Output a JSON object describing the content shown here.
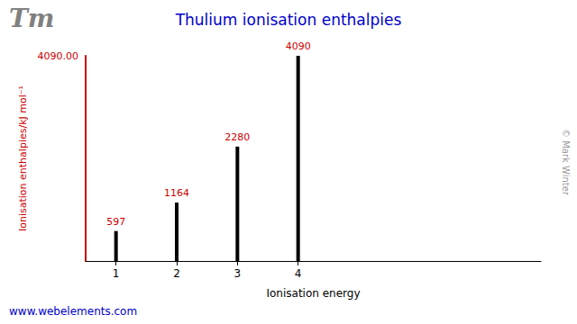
{
  "chart_data": {
    "type": "bar",
    "title": "Thulium ionisation enthalpies",
    "xlabel": "Ionisation energy",
    "ylabel": "Ionisation enthalpies/kJ mol⁻¹",
    "x": [
      1,
      2,
      3,
      4
    ],
    "values": [
      597,
      1164,
      2280,
      4090
    ],
    "color": "#000000",
    "xlim": [
      0.5,
      8
    ],
    "xticks": [
      1,
      2,
      3,
      4
    ],
    "ylim": [
      0,
      4090
    ],
    "yticks": [
      {
        "value": 4090,
        "label": "4090.00"
      }
    ],
    "grid": false,
    "data_labels": true,
    "annotations": [
      "Tm",
      "www.webelements.com",
      "© Mark Winter"
    ]
  }
}
